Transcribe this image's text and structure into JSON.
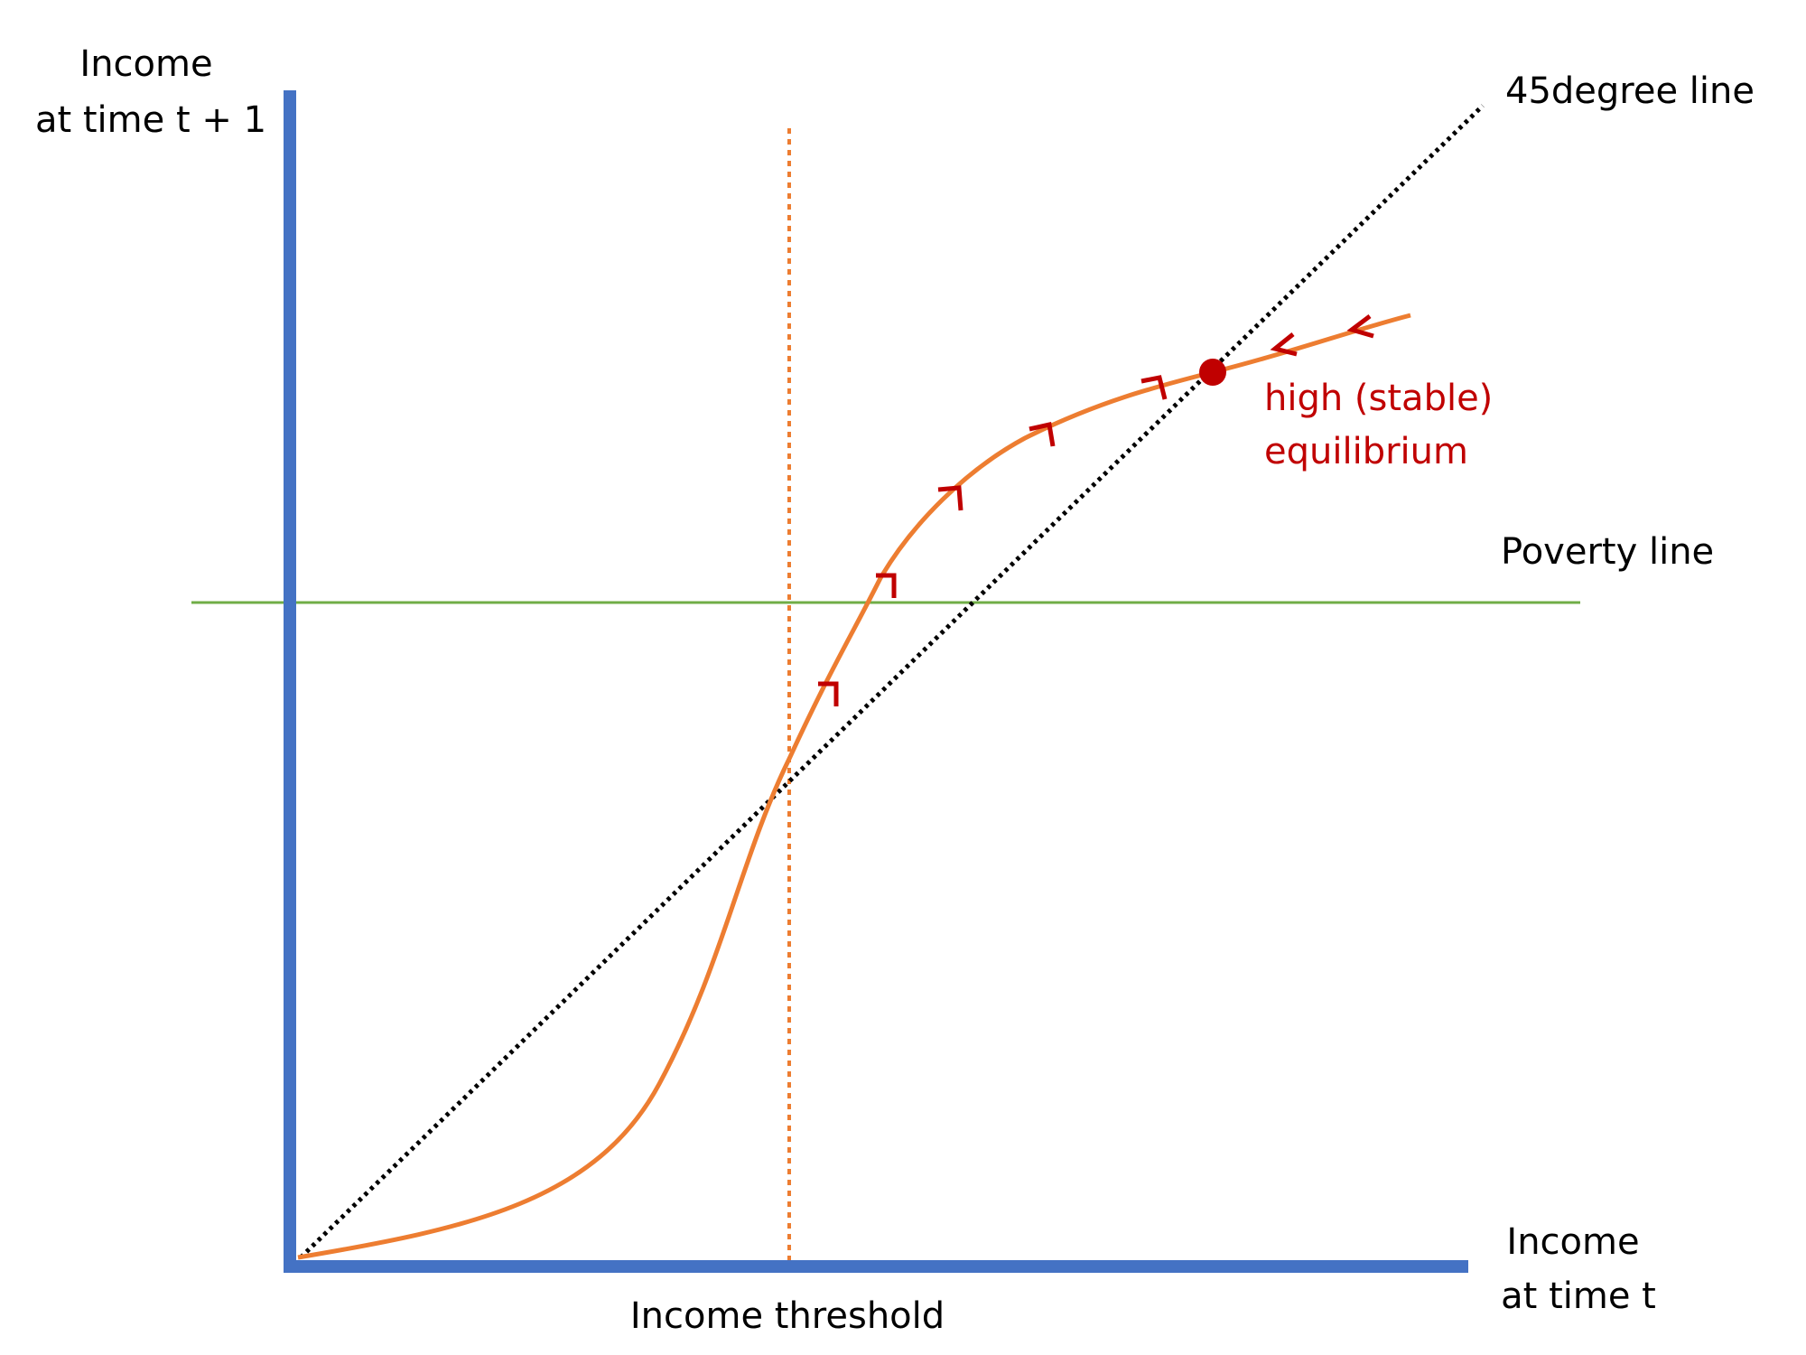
{
  "labels": {
    "y_axis_line1": "Income",
    "y_axis_line2": "at time t + 1",
    "x_axis_line1": "Income",
    "x_axis_line2": "at time t",
    "diagonal": "45degree line",
    "poverty_line": "Poverty line",
    "threshold": "Income threshold",
    "equilibrium_line1": "high (stable)",
    "equilibrium_line2": "equilibrium"
  },
  "colors": {
    "axis": "#4472C4",
    "curve": "#ED7D31",
    "poverty_line": "#70AD47",
    "diagonal": "#000000",
    "threshold": "#ED7D31",
    "equilibrium": "#C00000",
    "arrows": "#C00000"
  }
}
